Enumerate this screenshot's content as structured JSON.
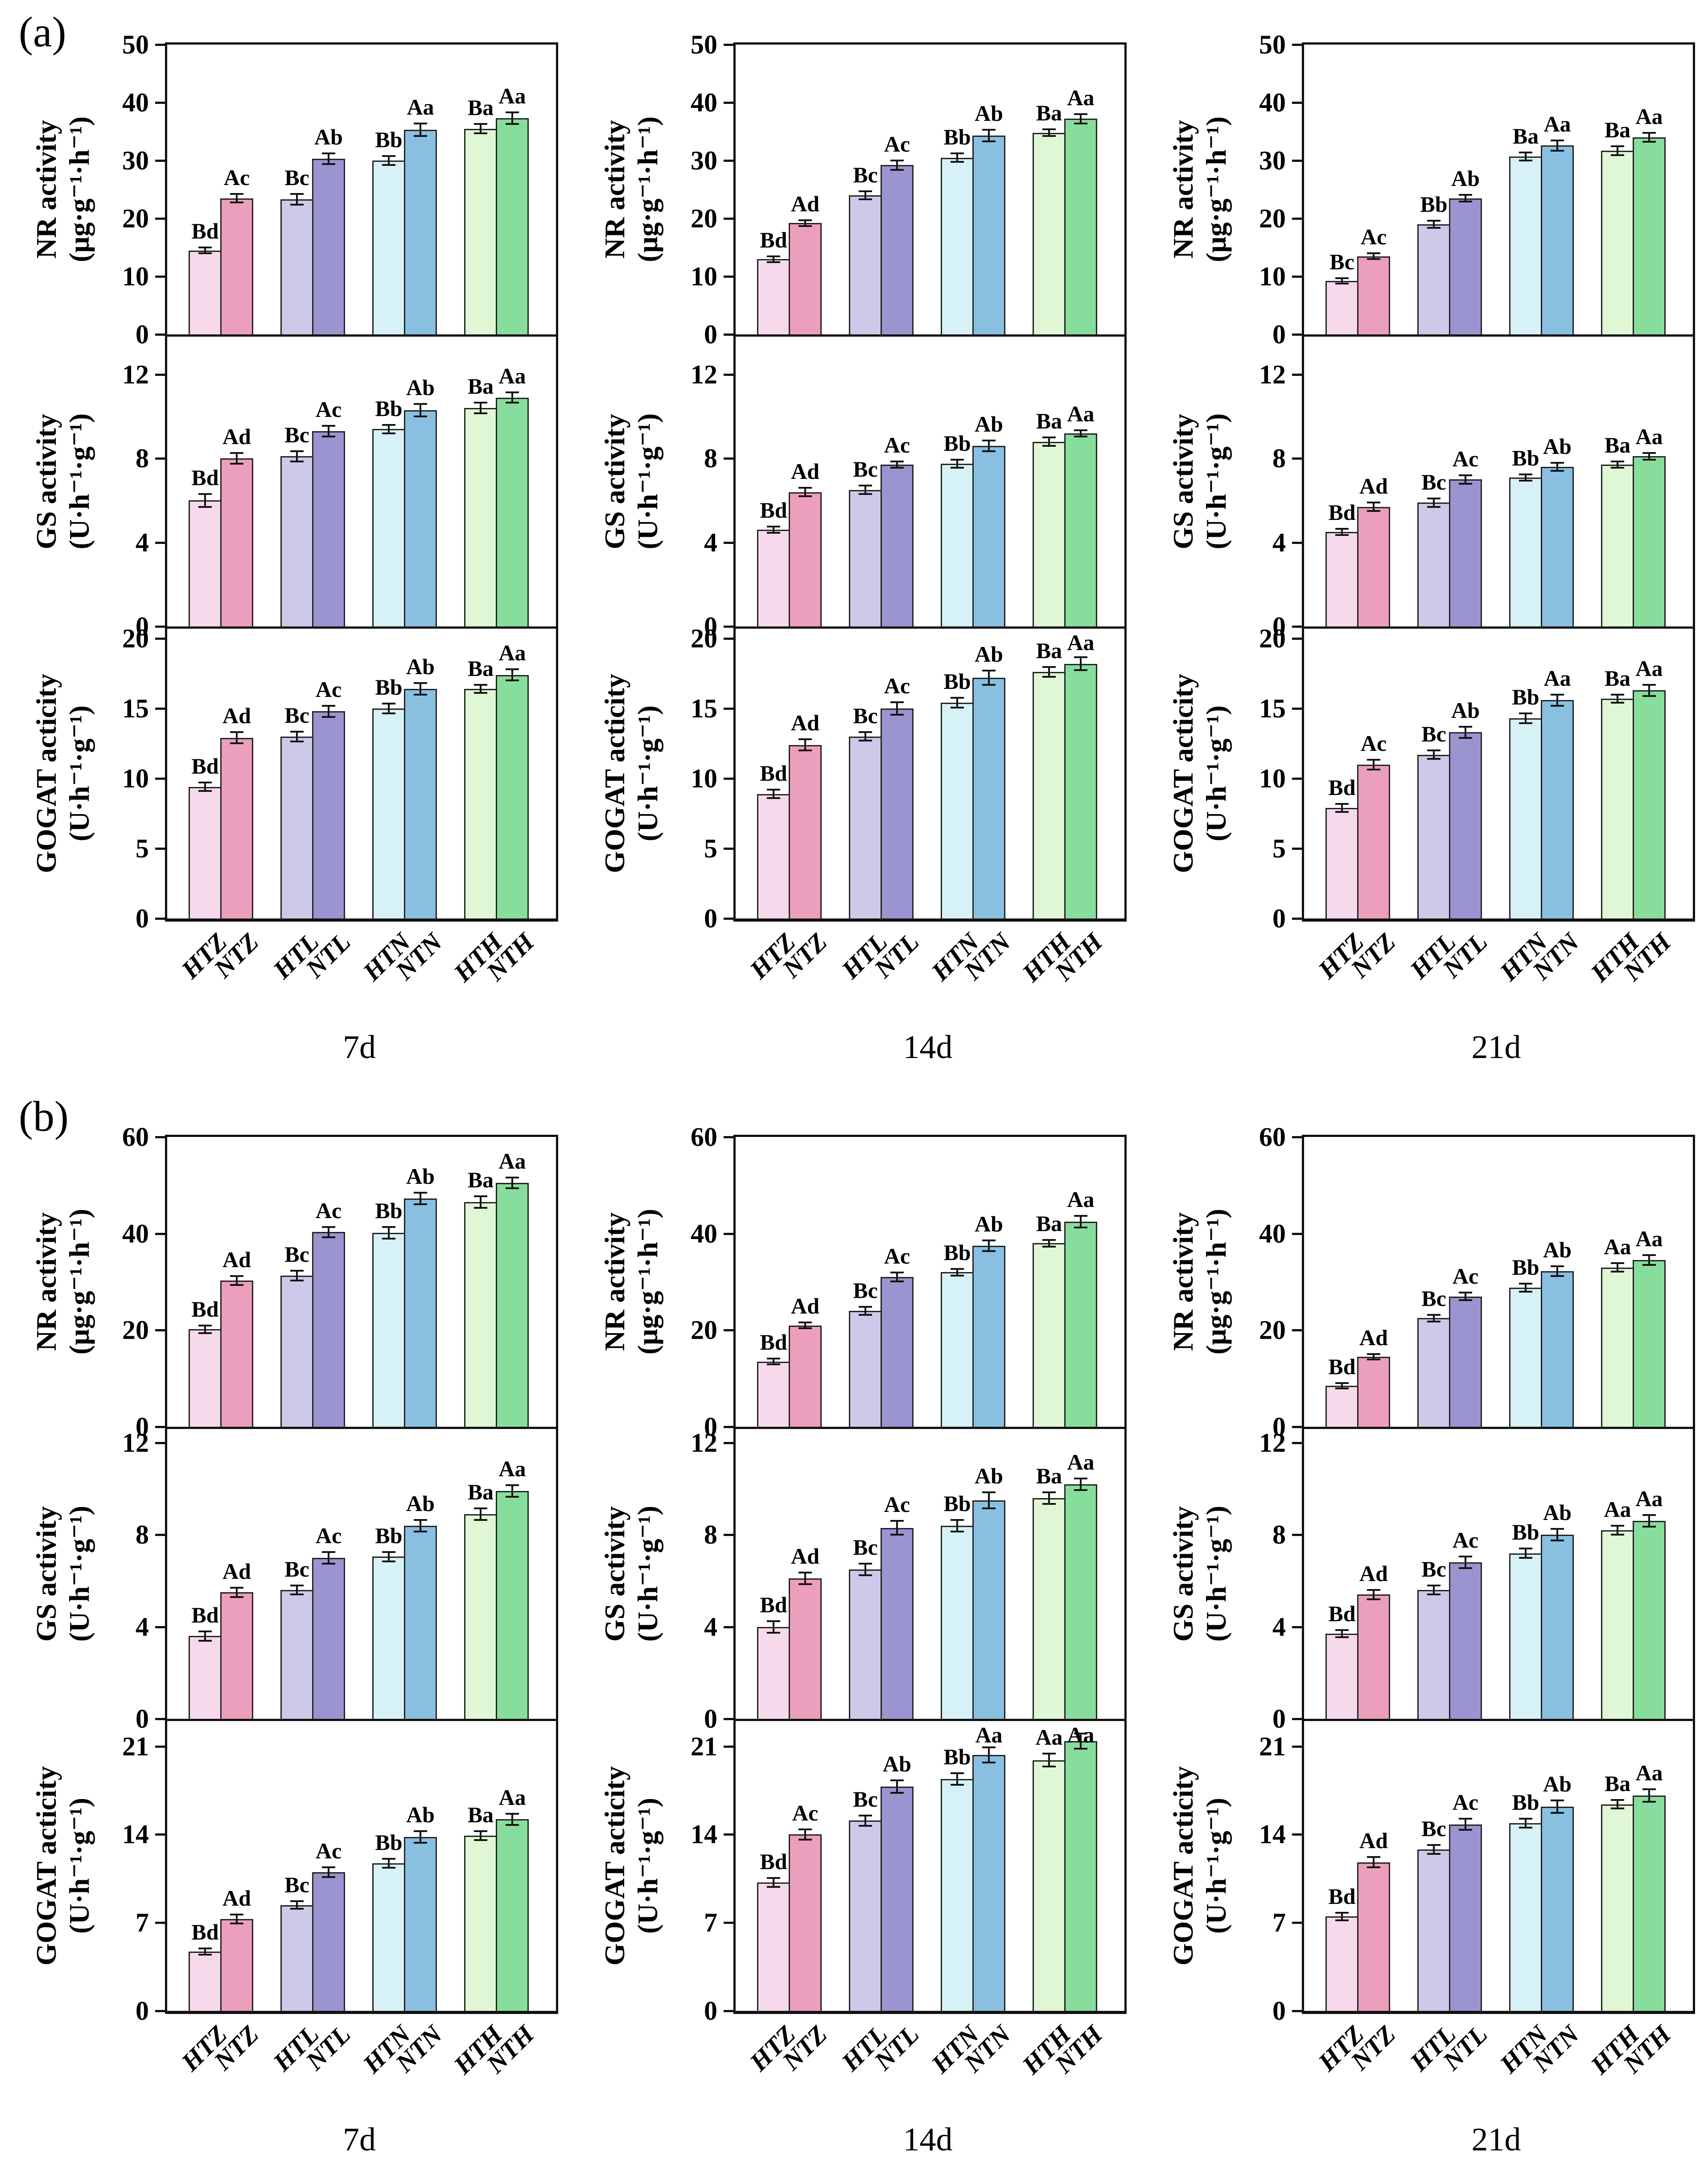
{
  "panels": [
    {
      "key": "a",
      "label": "(a)",
      "time_labels": [
        "7d",
        "14d",
        "21d"
      ]
    },
    {
      "key": "b",
      "label": "(b)",
      "time_labels": [
        "7d",
        "14d",
        "21d"
      ]
    }
  ],
  "categories": [
    "HTZ",
    "NTZ",
    "HTL",
    "NTL",
    "HTN",
    "NTN",
    "HTH",
    "NTH"
  ],
  "bar_colors": [
    "#f7d9ec",
    "#ec9fbc",
    "#cdc9e9",
    "#9a94d0",
    "#d6f2f6",
    "#89c0e2",
    "#dff7d5",
    "#87dd9b"
  ],
  "bar_edge_color": "#242424",
  "chart_data": [
    {
      "type": "bar",
      "panel": "a",
      "row": 0,
      "time": "7d",
      "ylabel": "NR activity",
      "yunit": "(μg·g⁻¹·h⁻¹)",
      "yticks": [
        0,
        10,
        20,
        30,
        40,
        50
      ],
      "ylim": [
        0,
        50
      ],
      "categories": [
        "HTZ",
        "NTZ",
        "HTL",
        "NTL",
        "HTN",
        "NTN",
        "HTH",
        "NTH"
      ],
      "values": [
        14.5,
        23.5,
        23.3,
        30.3,
        30.0,
        35.3,
        35.5,
        37.3
      ],
      "errors": [
        0.5,
        0.7,
        0.9,
        0.9,
        0.8,
        1.1,
        0.8,
        1.0
      ],
      "letters": [
        "Bd",
        "Ac",
        "Bc",
        "Ab",
        "Bb",
        "Aa",
        "Ba",
        "Aa"
      ]
    },
    {
      "type": "bar",
      "panel": "a",
      "row": 0,
      "time": "14d",
      "ylabel": "NR activity",
      "yunit": "(μg·g⁻¹·h⁻¹)",
      "yticks": [
        0,
        10,
        20,
        30,
        40,
        50
      ],
      "ylim": [
        0,
        50
      ],
      "categories": [
        "HTZ",
        "NTZ",
        "HTL",
        "NTL",
        "HTN",
        "NTN",
        "HTH",
        "NTH"
      ],
      "values": [
        13.0,
        19.2,
        24.0,
        29.2,
        30.5,
        34.3,
        34.8,
        37.2
      ],
      "errors": [
        0.5,
        0.5,
        0.7,
        0.8,
        0.7,
        1.0,
        0.6,
        0.8
      ],
      "letters": [
        "Bd",
        "Ad",
        "Bc",
        "Ac",
        "Bb",
        "Ab",
        "Ba",
        "Aa"
      ]
    },
    {
      "type": "bar",
      "panel": "a",
      "row": 0,
      "time": "21d",
      "ylabel": "NR activity",
      "yunit": "(μg·g⁻¹·h⁻¹)",
      "yticks": [
        0,
        10,
        20,
        30,
        40,
        50
      ],
      "ylim": [
        0,
        50
      ],
      "categories": [
        "HTZ",
        "NTZ",
        "HTL",
        "NTL",
        "HTN",
        "NTN",
        "HTH",
        "NTH"
      ],
      "values": [
        9.2,
        13.5,
        19.0,
        23.5,
        30.7,
        32.6,
        31.7,
        34.0
      ],
      "errors": [
        0.4,
        0.5,
        0.6,
        0.6,
        0.7,
        0.9,
        0.8,
        0.8
      ],
      "letters": [
        "Bc",
        "Ac",
        "Bb",
        "Ab",
        "Ba",
        "Aa",
        "Ba",
        "Aa"
      ]
    },
    {
      "type": "bar",
      "panel": "a",
      "row": 1,
      "time": "7d",
      "ylabel": "GS activity",
      "yunit": "(U·h⁻¹·g⁻¹)",
      "yticks": [
        0,
        4,
        8,
        12
      ],
      "ylim": [
        0,
        13.8
      ],
      "categories": [
        "HTZ",
        "NTZ",
        "HTL",
        "NTL",
        "HTN",
        "NTN",
        "HTH",
        "NTH"
      ],
      "values": [
        6.0,
        8.0,
        8.1,
        9.3,
        9.4,
        10.3,
        10.4,
        10.9
      ],
      "errors": [
        0.3,
        0.25,
        0.25,
        0.25,
        0.2,
        0.3,
        0.25,
        0.25
      ],
      "letters": [
        "Bd",
        "Ad",
        "Bc",
        "Ac",
        "Bb",
        "Ab",
        "Ba",
        "Aa"
      ]
    },
    {
      "type": "bar",
      "panel": "a",
      "row": 1,
      "time": "14d",
      "ylabel": "GS activity",
      "yunit": "(U·h⁻¹·g⁻¹)",
      "yticks": [
        0,
        4,
        8,
        12
      ],
      "ylim": [
        0,
        13.8
      ],
      "categories": [
        "HTZ",
        "NTZ",
        "HTL",
        "NTL",
        "HTN",
        "NTN",
        "HTH",
        "NTH"
      ],
      "values": [
        4.6,
        6.4,
        6.5,
        7.7,
        7.75,
        8.6,
        8.8,
        9.2
      ],
      "errors": [
        0.15,
        0.2,
        0.2,
        0.15,
        0.2,
        0.25,
        0.2,
        0.15
      ],
      "letters": [
        "Bd",
        "Ad",
        "Bc",
        "Ac",
        "Bb",
        "Ab",
        "Ba",
        "Aa"
      ]
    },
    {
      "type": "bar",
      "panel": "a",
      "row": 1,
      "time": "21d",
      "ylabel": "GS activity",
      "yunit": "(U·h⁻¹·g⁻¹)",
      "yticks": [
        0,
        4,
        8,
        12
      ],
      "ylim": [
        0,
        13.8
      ],
      "categories": [
        "HTZ",
        "NTZ",
        "HTL",
        "NTL",
        "HTN",
        "NTN",
        "HTH",
        "NTH"
      ],
      "values": [
        4.5,
        5.7,
        5.9,
        7.0,
        7.1,
        7.6,
        7.7,
        8.1
      ],
      "errors": [
        0.15,
        0.2,
        0.2,
        0.2,
        0.15,
        0.2,
        0.15,
        0.15
      ],
      "letters": [
        "Bd",
        "Ad",
        "Bc",
        "Ac",
        "Bb",
        "Ab",
        "Ba",
        "Aa"
      ]
    },
    {
      "type": "bar",
      "panel": "a",
      "row": 2,
      "time": "7d",
      "ylabel": "GOGAT acticity",
      "yunit": "(U·h⁻¹·g⁻¹)",
      "yticks": [
        0,
        5,
        10,
        15,
        20
      ],
      "ylim": [
        0,
        20.7
      ],
      "categories": [
        "HTZ",
        "NTZ",
        "HTL",
        "NTL",
        "HTN",
        "NTN",
        "HTH",
        "NTH"
      ],
      "values": [
        9.4,
        12.9,
        13.0,
        14.8,
        15.0,
        16.4,
        16.4,
        17.4
      ],
      "errors": [
        0.3,
        0.4,
        0.35,
        0.4,
        0.35,
        0.4,
        0.3,
        0.4
      ],
      "letters": [
        "Bd",
        "Ad",
        "Bc",
        "Ac",
        "Bb",
        "Ab",
        "Ba",
        "Aa"
      ]
    },
    {
      "type": "bar",
      "panel": "a",
      "row": 2,
      "time": "14d",
      "ylabel": "GOGAT acticity",
      "yunit": "(U·h⁻¹·g⁻¹)",
      "yticks": [
        0,
        5,
        10,
        15,
        20
      ],
      "ylim": [
        0,
        20.7
      ],
      "categories": [
        "HTZ",
        "NTZ",
        "HTL",
        "NTL",
        "HTN",
        "NTN",
        "HTH",
        "NTH"
      ],
      "values": [
        8.9,
        12.4,
        13.0,
        15.0,
        15.4,
        17.2,
        17.6,
        18.2
      ],
      "errors": [
        0.3,
        0.4,
        0.3,
        0.45,
        0.35,
        0.5,
        0.35,
        0.45
      ],
      "letters": [
        "Bd",
        "Ad",
        "Bc",
        "Ac",
        "Bb",
        "Ab",
        "Ba",
        "Aa"
      ]
    },
    {
      "type": "bar",
      "panel": "a",
      "row": 2,
      "time": "21d",
      "ylabel": "GOGAT acticity",
      "yunit": "(U·h⁻¹·g⁻¹)",
      "yticks": [
        0,
        5,
        10,
        15,
        20
      ],
      "ylim": [
        0,
        20.7
      ],
      "categories": [
        "HTZ",
        "NTZ",
        "HTL",
        "NTL",
        "HTN",
        "NTN",
        "HTH",
        "NTH"
      ],
      "values": [
        7.9,
        11.0,
        11.7,
        13.3,
        14.3,
        15.6,
        15.7,
        16.3
      ],
      "errors": [
        0.3,
        0.35,
        0.3,
        0.4,
        0.35,
        0.4,
        0.3,
        0.4
      ],
      "letters": [
        "Bd",
        "Ac",
        "Bc",
        "Ab",
        "Bb",
        "Aa",
        "Ba",
        "Aa"
      ]
    },
    {
      "type": "bar",
      "panel": "b",
      "row": 0,
      "time": "7d",
      "ylabel": "NR activity",
      "yunit": "(μg·g⁻¹·h⁻¹)",
      "yticks": [
        0,
        20,
        40,
        60
      ],
      "ylim": [
        0,
        60
      ],
      "categories": [
        "HTZ",
        "NTZ",
        "HTL",
        "NTL",
        "HTN",
        "NTN",
        "HTH",
        "NTH"
      ],
      "values": [
        20.2,
        30.3,
        31.3,
        40.3,
        40.2,
        47.3,
        46.5,
        50.5
      ],
      "errors": [
        0.8,
        0.9,
        1.0,
        1.1,
        1.2,
        1.2,
        1.2,
        1.1
      ],
      "letters": [
        "Bd",
        "Ad",
        "Bc",
        "Ac",
        "Bb",
        "Ab",
        "Ba",
        "Aa"
      ]
    },
    {
      "type": "bar",
      "panel": "b",
      "row": 0,
      "time": "14d",
      "ylabel": "NR activity",
      "yunit": "(μg·g⁻¹·h⁻¹)",
      "yticks": [
        0,
        20,
        40,
        60
      ],
      "ylim": [
        0,
        60
      ],
      "categories": [
        "HTZ",
        "NTZ",
        "HTL",
        "NTL",
        "HTN",
        "NTN",
        "HTH",
        "NTH"
      ],
      "values": [
        13.5,
        21.0,
        24.0,
        31.0,
        32.0,
        37.5,
        38.0,
        42.5
      ],
      "errors": [
        0.6,
        0.6,
        0.8,
        0.9,
        0.7,
        1.1,
        0.7,
        1.2
      ],
      "letters": [
        "Bd",
        "Ad",
        "Bc",
        "Ac",
        "Bb",
        "Ab",
        "Ba",
        "Aa"
      ]
    },
    {
      "type": "bar",
      "panel": "b",
      "row": 0,
      "time": "21d",
      "ylabel": "NR activity",
      "yunit": "(μg·g⁻¹·h⁻¹)",
      "yticks": [
        0,
        20,
        40,
        60
      ],
      "ylim": [
        0,
        60
      ],
      "categories": [
        "HTZ",
        "NTZ",
        "HTL",
        "NTL",
        "HTN",
        "NTN",
        "HTH",
        "NTH"
      ],
      "values": [
        8.5,
        14.5,
        22.5,
        27.0,
        28.8,
        32.2,
        33.0,
        34.5
      ],
      "errors": [
        0.5,
        0.4,
        0.7,
        0.8,
        0.8,
        1.0,
        0.9,
        1.0
      ],
      "letters": [
        "Bd",
        "Ad",
        "Bc",
        "Ac",
        "Bb",
        "Ab",
        "Aa",
        "Aa"
      ]
    },
    {
      "type": "bar",
      "panel": "b",
      "row": 1,
      "time": "7d",
      "ylabel": "GS activity",
      "yunit": "(U·h⁻¹·g⁻¹)",
      "yticks": [
        0,
        4,
        8,
        12
      ],
      "ylim": [
        0,
        12.6
      ],
      "categories": [
        "HTZ",
        "NTZ",
        "HTL",
        "NTL",
        "HTN",
        "NTN",
        "HTH",
        "NTH"
      ],
      "values": [
        3.6,
        5.5,
        5.6,
        7.0,
        7.05,
        8.4,
        8.9,
        9.9
      ],
      "errors": [
        0.2,
        0.2,
        0.2,
        0.25,
        0.2,
        0.25,
        0.25,
        0.25
      ],
      "letters": [
        "Bd",
        "Ad",
        "Bc",
        "Ac",
        "Bb",
        "Ab",
        "Ba",
        "Aa"
      ]
    },
    {
      "type": "bar",
      "panel": "b",
      "row": 1,
      "time": "14d",
      "ylabel": "GS activity",
      "yunit": "(U·h⁻¹·g⁻¹)",
      "yticks": [
        0,
        4,
        8,
        12
      ],
      "ylim": [
        0,
        12.6
      ],
      "categories": [
        "HTZ",
        "NTZ",
        "HTL",
        "NTL",
        "HTN",
        "NTN",
        "HTH",
        "NTH"
      ],
      "values": [
        4.0,
        6.1,
        6.5,
        8.3,
        8.4,
        9.5,
        9.6,
        10.2
      ],
      "errors": [
        0.25,
        0.25,
        0.25,
        0.3,
        0.25,
        0.35,
        0.25,
        0.25
      ],
      "letters": [
        "Bd",
        "Ad",
        "Bc",
        "Ac",
        "Bb",
        "Ab",
        "Ba",
        "Aa"
      ]
    },
    {
      "type": "bar",
      "panel": "b",
      "row": 1,
      "time": "21d",
      "ylabel": "GS activity",
      "yunit": "(U·h⁻¹·g⁻¹)",
      "yticks": [
        0,
        4,
        8,
        12
      ],
      "ylim": [
        0,
        12.6
      ],
      "categories": [
        "HTZ",
        "NTZ",
        "HTL",
        "NTL",
        "HTN",
        "NTN",
        "HTH",
        "NTH"
      ],
      "values": [
        3.7,
        5.4,
        5.6,
        6.8,
        7.2,
        8.0,
        8.2,
        8.6
      ],
      "errors": [
        0.15,
        0.2,
        0.2,
        0.25,
        0.2,
        0.25,
        0.2,
        0.25
      ],
      "letters": [
        "Bd",
        "Ad",
        "Bc",
        "Ac",
        "Bb",
        "Ab",
        "Aa",
        "Aa"
      ]
    },
    {
      "type": "bar",
      "panel": "b",
      "row": 2,
      "time": "7d",
      "ylabel": "GOGAT acticity",
      "yunit": "(U·h⁻¹·g⁻¹)",
      "yticks": [
        0,
        7,
        14,
        21
      ],
      "ylim": [
        0,
        23.0
      ],
      "categories": [
        "HTZ",
        "NTZ",
        "HTL",
        "NTL",
        "HTN",
        "NTN",
        "HTH",
        "NTH"
      ],
      "values": [
        4.7,
        7.3,
        8.4,
        11.0,
        11.7,
        13.8,
        13.9,
        15.2
      ],
      "errors": [
        0.25,
        0.35,
        0.3,
        0.4,
        0.35,
        0.45,
        0.35,
        0.45
      ],
      "letters": [
        "Bd",
        "Ad",
        "Bc",
        "Ac",
        "Bb",
        "Ab",
        "Ba",
        "Aa"
      ]
    },
    {
      "type": "bar",
      "panel": "b",
      "row": 2,
      "time": "14d",
      "ylabel": "GOGAT acticity",
      "yunit": "(U·h⁻¹·g⁻¹)",
      "yticks": [
        0,
        7,
        14,
        21
      ],
      "ylim": [
        0,
        23.0
      ],
      "categories": [
        "HTZ",
        "NTZ",
        "HTL",
        "NTL",
        "HTN",
        "NTN",
        "HTH",
        "NTH"
      ],
      "values": [
        10.2,
        14.0,
        15.1,
        17.8,
        18.4,
        20.3,
        19.9,
        21.4
      ],
      "errors": [
        0.35,
        0.4,
        0.4,
        0.5,
        0.45,
        0.6,
        0.5,
        0.6
      ],
      "letters": [
        "Bd",
        "Ac",
        "Bc",
        "Ab",
        "Bb",
        "Aa",
        "Aa",
        "Aa"
      ]
    },
    {
      "type": "bar",
      "panel": "b",
      "row": 2,
      "time": "21d",
      "ylabel": "GOGAT acticity",
      "yunit": "(U·h⁻¹·g⁻¹)",
      "yticks": [
        0,
        7,
        14,
        21
      ],
      "ylim": [
        0,
        23.0
      ],
      "categories": [
        "HTZ",
        "NTZ",
        "HTL",
        "NTL",
        "HTN",
        "NTN",
        "HTH",
        "NTH"
      ],
      "values": [
        7.5,
        11.8,
        12.8,
        14.8,
        14.9,
        16.2,
        16.4,
        17.1
      ],
      "errors": [
        0.3,
        0.4,
        0.35,
        0.45,
        0.35,
        0.5,
        0.35,
        0.5
      ],
      "letters": [
        "Bd",
        "Ad",
        "Bc",
        "Ac",
        "Bb",
        "Ab",
        "Ba",
        "Aa"
      ]
    }
  ]
}
